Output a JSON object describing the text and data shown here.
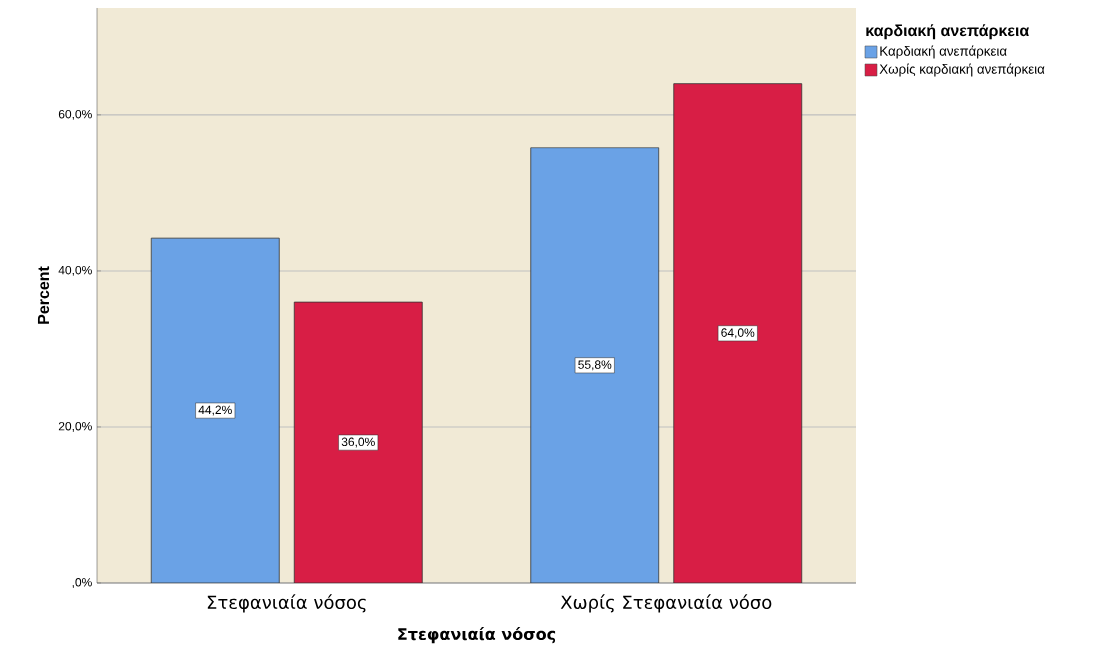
{
  "chart_data": {
    "type": "bar",
    "xlabel": "Στεφανιαία νόσος",
    "ylabel": "Percent",
    "legend_title": "καρδιακή ανεπάρκεια",
    "categories": [
      "Στεφανιαία νόσος",
      "Χωρίς Στεφανιαία νόσο"
    ],
    "series": [
      {
        "name": "Καρδιακή ανεπάρκεια",
        "color": "#6aa2e6",
        "values": [
          44.2,
          55.8
        ],
        "value_labels": [
          "44,2%",
          "55,8%"
        ]
      },
      {
        "name": "Χωρίς καρδιακή ανεπάρκεια",
        "color": "#d81e45",
        "values": [
          36.0,
          64.0
        ],
        "value_labels": [
          "36,0%",
          "64,0%"
        ]
      }
    ],
    "ylim": [
      0,
      73.7
    ],
    "yticks": [
      {
        "value": 0,
        "label": ",0%"
      },
      {
        "value": 20,
        "label": "20,0%"
      },
      {
        "value": 40,
        "label": "40,0%"
      },
      {
        "value": 60,
        "label": "60,0%"
      }
    ],
    "grid": "y",
    "legend": "top right"
  }
}
